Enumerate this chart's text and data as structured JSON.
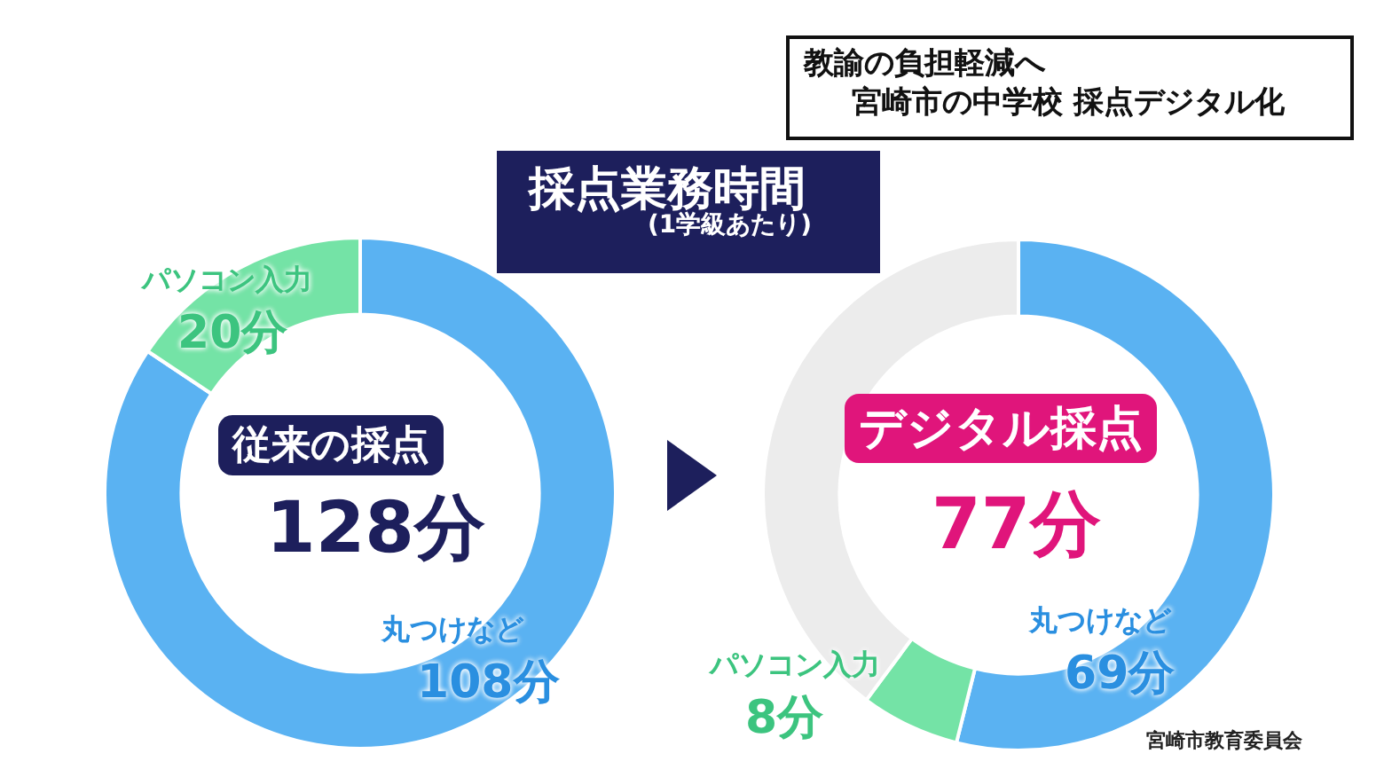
{
  "chart_data": [
    {
      "type": "donut",
      "title": "採点業務時間",
      "subtitle": "(1学級あたり)",
      "categories": [
        "丸つけなど",
        "パソコン入力"
      ],
      "values": [
        108,
        20
      ],
      "colors": [
        "#5ab2f2",
        "#74e3a6"
      ],
      "value_labels": [
        "108分",
        "20分"
      ],
      "annotations": [
        "教諭の負担軽減へ",
        "宮崎市の中学校 採点デジタル化",
        "従来の採点",
        "128分"
      ]
    },
    {
      "type": "donut",
      "categories": [
        "丸つけなど",
        "パソコン入力",
        null
      ],
      "values": [
        69,
        8,
        51
      ],
      "colors": [
        "#5ab2f2",
        "#74e3a6",
        "#ececec"
      ],
      "value_labels": [
        "69分",
        "8分",
        null
      ],
      "annotations": [
        "デジタル採点",
        "77分",
        "宮崎市教育委員会"
      ]
    }
  ]
}
